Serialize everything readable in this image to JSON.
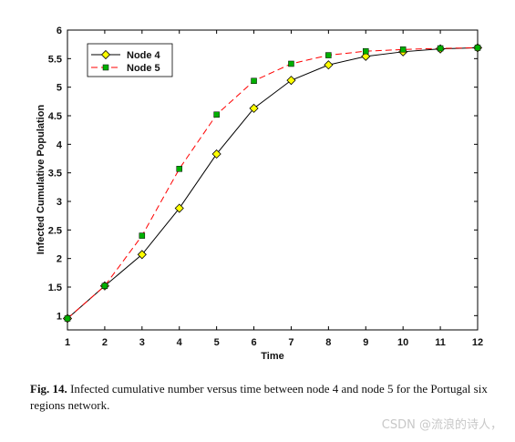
{
  "chart_data": {
    "type": "line",
    "xlabel": "Time",
    "ylabel": "Infected Cumulative Population",
    "xlim": [
      1,
      12
    ],
    "ylim": [
      0.75,
      6
    ],
    "xticks": [
      "1",
      "2",
      "3",
      "4",
      "5",
      "6",
      "7",
      "8",
      "9",
      "10",
      "11",
      "12"
    ],
    "yticks": [
      "1",
      "1.5",
      "2",
      "2.5",
      "3",
      "3.5",
      "4",
      "4.5",
      "5",
      "5.5",
      "6"
    ],
    "legend_position": "top-left",
    "x": [
      1,
      2,
      3,
      4,
      5,
      6,
      7,
      8,
      9,
      10,
      11,
      12
    ],
    "series": [
      {
        "name": "Node 4",
        "values": [
          0.95,
          1.52,
          2.07,
          2.88,
          3.83,
          4.63,
          5.12,
          5.39,
          5.54,
          5.62,
          5.67,
          5.69
        ],
        "line_color": "#000000",
        "line_style": "solid",
        "marker": "diamond",
        "marker_color": "#ffff00"
      },
      {
        "name": "Node 5",
        "values": [
          0.95,
          1.52,
          2.4,
          3.57,
          4.52,
          5.11,
          5.41,
          5.56,
          5.63,
          5.66,
          5.68,
          5.69
        ],
        "line_color": "#ff0000",
        "line_style": "dashed",
        "marker": "square",
        "marker_color": "#00b000"
      }
    ]
  },
  "caption": {
    "label": "Fig. 14.",
    "text": " Infected cumulative number versus time between node 4 and node 5 for the Portugal six regions network."
  },
  "watermark": "CSDN @流浪的诗人，"
}
